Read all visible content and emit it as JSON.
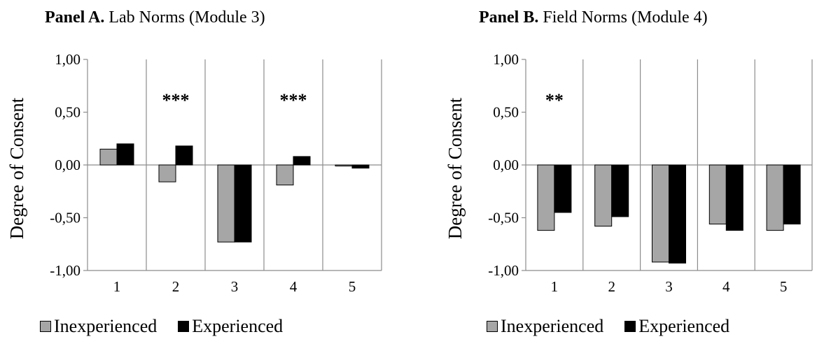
{
  "chart_data": [
    {
      "type": "bar",
      "title_bold": "Panel A.",
      "title_rest": " Lab Norms (Module 3)",
      "ylabel": "Degree of Consent",
      "xlabel": "",
      "ylim": [
        -1,
        1
      ],
      "yticks": [
        "1,00",
        "0,50",
        "0,00",
        "-0,50",
        "-1,00"
      ],
      "categories": [
        "1",
        "2",
        "3",
        "4",
        "5"
      ],
      "series": [
        {
          "name": "Inexperienced",
          "color": "#a6a6a6",
          "values": [
            0.15,
            -0.16,
            -0.73,
            -0.19,
            -0.01
          ]
        },
        {
          "name": "Experienced",
          "color": "#000000",
          "values": [
            0.2,
            0.18,
            -0.73,
            0.08,
            -0.03
          ]
        }
      ],
      "annotations": [
        "",
        "***",
        "",
        "***",
        ""
      ],
      "grid": "vertical",
      "legend": "bottom"
    },
    {
      "type": "bar",
      "title_bold": "Panel B.",
      "title_rest": " Field Norms (Module 4)",
      "ylabel": "Degree of Consent",
      "xlabel": "",
      "ylim": [
        -1,
        1
      ],
      "yticks": [
        "1,00",
        "0,50",
        "0,00",
        "-0,50",
        "-1,00"
      ],
      "categories": [
        "1",
        "2",
        "3",
        "4",
        "5"
      ],
      "series": [
        {
          "name": "Inexperienced",
          "color": "#a6a6a6",
          "values": [
            -0.62,
            -0.58,
            -0.92,
            -0.56,
            -0.62
          ]
        },
        {
          "name": "Experienced",
          "color": "#000000",
          "values": [
            -0.45,
            -0.49,
            -0.93,
            -0.62,
            -0.56
          ]
        }
      ],
      "annotations": [
        "**",
        "",
        "",
        "",
        ""
      ],
      "grid": "vertical",
      "legend": "bottom"
    }
  ]
}
